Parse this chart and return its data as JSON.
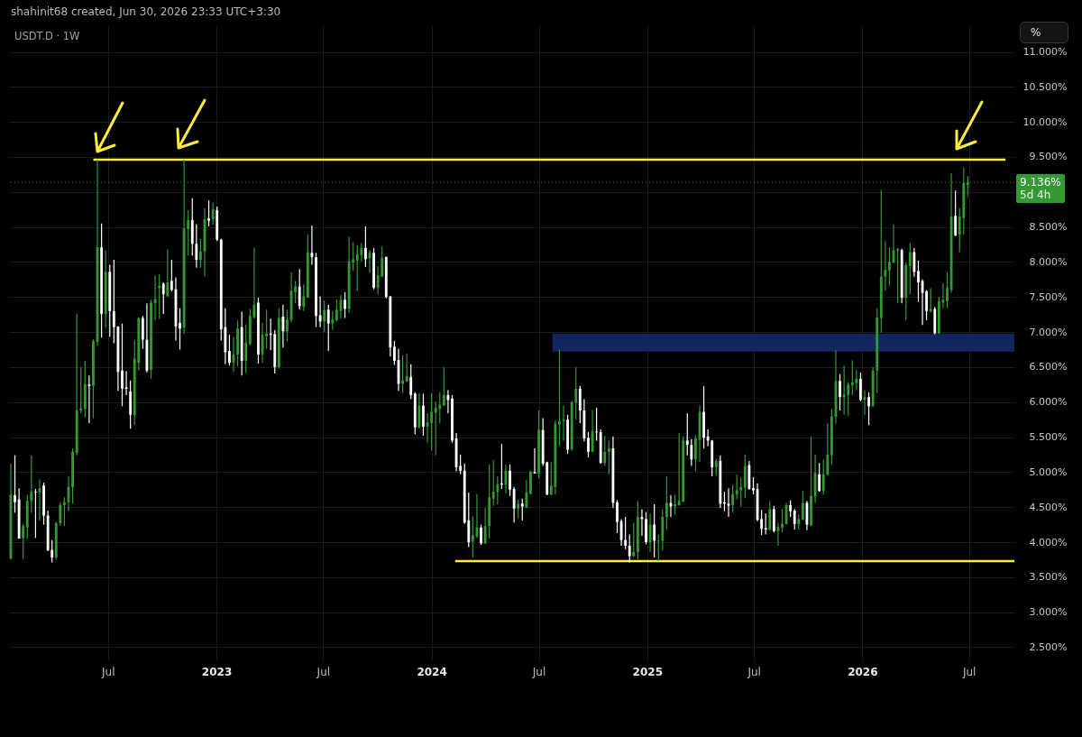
{
  "chart_data": {
    "type": "candlestick",
    "title": "USDT.D · 1W",
    "subtitle": "shahinit68 created, Jun 30, 2026 23:33 UTC+3:30",
    "x": [
      "2022-01-17",
      "2022-01-24",
      "2022-01-31",
      "2022-02-07",
      "2022-02-14",
      "2022-02-21",
      "2022-02-28",
      "2022-03-07",
      "2022-03-14",
      "2022-03-21",
      "2022-03-28",
      "2022-04-04",
      "2022-04-11",
      "2022-04-18",
      "2022-04-25",
      "2022-05-02",
      "2022-05-09",
      "2022-05-16",
      "2022-05-23",
      "2022-05-30",
      "2022-06-06",
      "2022-06-13",
      "2022-06-20",
      "2022-06-27",
      "2022-07-04",
      "2022-07-11",
      "2022-07-18",
      "2022-07-25",
      "2022-08-01",
      "2022-08-08",
      "2022-08-15",
      "2022-08-22",
      "2022-08-29",
      "2022-09-05",
      "2022-09-12",
      "2022-09-19",
      "2022-09-26",
      "2022-10-03",
      "2022-10-10",
      "2022-10-17",
      "2022-10-24",
      "2022-10-31",
      "2022-11-07",
      "2022-11-14",
      "2022-11-21",
      "2022-11-28",
      "2022-12-05",
      "2022-12-12",
      "2022-12-19",
      "2022-12-26",
      "2023-01-02",
      "2023-01-09",
      "2023-01-16",
      "2023-01-23",
      "2023-01-30",
      "2023-02-06",
      "2023-02-13",
      "2023-02-20",
      "2023-02-27",
      "2023-03-06",
      "2023-03-13",
      "2023-03-20",
      "2023-03-27",
      "2023-04-03",
      "2023-04-10",
      "2023-04-17",
      "2023-04-24",
      "2023-05-01",
      "2023-05-08",
      "2023-05-15",
      "2023-05-22",
      "2023-05-29",
      "2023-06-05",
      "2023-06-12",
      "2023-06-19",
      "2023-06-26",
      "2023-07-03",
      "2023-07-10",
      "2023-07-17",
      "2023-07-24",
      "2023-07-31",
      "2023-08-07",
      "2023-08-14",
      "2023-08-21",
      "2023-08-28",
      "2023-09-04",
      "2023-09-11",
      "2023-09-18",
      "2023-09-25",
      "2023-10-02",
      "2023-10-09",
      "2023-10-16",
      "2023-10-23",
      "2023-10-30",
      "2023-11-06",
      "2023-11-13",
      "2023-11-20",
      "2023-11-27",
      "2023-12-04",
      "2023-12-11",
      "2023-12-18",
      "2023-12-25",
      "2024-01-01",
      "2024-01-08",
      "2024-01-15",
      "2024-01-22",
      "2024-01-29",
      "2024-02-05",
      "2024-02-12",
      "2024-02-19",
      "2024-02-26",
      "2024-03-04",
      "2024-03-11",
      "2024-03-18",
      "2024-03-25",
      "2024-04-01",
      "2024-04-08",
      "2024-04-15",
      "2024-04-22",
      "2024-04-29",
      "2024-05-06",
      "2024-05-13",
      "2024-05-20",
      "2024-05-27",
      "2024-06-03",
      "2024-06-10",
      "2024-06-17",
      "2024-06-24",
      "2024-07-01",
      "2024-07-08",
      "2024-07-15",
      "2024-07-22",
      "2024-07-29",
      "2024-08-05",
      "2024-08-12",
      "2024-08-19",
      "2024-08-26",
      "2024-09-02",
      "2024-09-09",
      "2024-09-16",
      "2024-09-23",
      "2024-09-30",
      "2024-10-07",
      "2024-10-14",
      "2024-10-21",
      "2024-10-28",
      "2024-11-04",
      "2024-11-11",
      "2024-11-18",
      "2024-11-25",
      "2024-12-02",
      "2024-12-09",
      "2024-12-16",
      "2024-12-23",
      "2024-12-30",
      "2025-01-06",
      "2025-01-13",
      "2025-01-20",
      "2025-01-27",
      "2025-02-03",
      "2025-02-10",
      "2025-02-17",
      "2025-02-24",
      "2025-03-03",
      "2025-03-10",
      "2025-03-17",
      "2025-03-24",
      "2025-03-31",
      "2025-04-07",
      "2025-04-14",
      "2025-04-21",
      "2025-04-28",
      "2025-05-05",
      "2025-05-12",
      "2025-05-19",
      "2025-05-26",
      "2025-06-02",
      "2025-06-09",
      "2025-06-16",
      "2025-06-23",
      "2025-06-30",
      "2025-07-07",
      "2025-07-14",
      "2025-07-21",
      "2025-07-28",
      "2025-08-04",
      "2025-08-11",
      "2025-08-18",
      "2025-08-25",
      "2025-09-01",
      "2025-09-08",
      "2025-09-15",
      "2025-09-22",
      "2025-09-29",
      "2025-10-06",
      "2025-10-13",
      "2025-10-20",
      "2025-10-27",
      "2025-11-03",
      "2025-11-10",
      "2025-11-17",
      "2025-11-24",
      "2025-12-01",
      "2025-12-08",
      "2025-12-15",
      "2025-12-22",
      "2025-12-29",
      "2026-01-05",
      "2026-01-12",
      "2026-01-19",
      "2026-01-26",
      "2026-02-02",
      "2026-02-09",
      "2026-02-16",
      "2026-02-23",
      "2026-03-02",
      "2026-03-09",
      "2026-03-16",
      "2026-03-23",
      "2026-03-30",
      "2026-04-06",
      "2026-04-13",
      "2026-04-20",
      "2026-04-27",
      "2026-05-04",
      "2026-05-11",
      "2026-05-18",
      "2026-05-25",
      "2026-06-01",
      "2026-06-08",
      "2026-06-15",
      "2026-06-22",
      "2026-06-29"
    ],
    "ohlc": [
      [
        3.76,
        5.12,
        3.76,
        4.68
      ],
      [
        4.67,
        5.24,
        4.42,
        4.57
      ],
      [
        4.61,
        4.77,
        4.05,
        4.05
      ],
      [
        4.06,
        4.26,
        3.76,
        4.23
      ],
      [
        4.21,
        4.68,
        4.05,
        4.59
      ],
      [
        4.59,
        5.24,
        4.42,
        4.72
      ],
      [
        4.72,
        4.76,
        4.06,
        4.71
      ],
      [
        4.71,
        4.9,
        4.31,
        4.77
      ],
      [
        4.81,
        4.85,
        4.25,
        4.38
      ],
      [
        4.38,
        4.45,
        3.88,
        3.88
      ],
      [
        3.89,
        4.03,
        3.71,
        3.78
      ],
      [
        3.78,
        4.29,
        3.75,
        4.27
      ],
      [
        4.27,
        4.57,
        4.23,
        4.53
      ],
      [
        4.53,
        4.64,
        4.23,
        4.57
      ],
      [
        4.57,
        4.94,
        4.44,
        4.79
      ],
      [
        4.78,
        5.34,
        4.55,
        5.29
      ],
      [
        5.27,
        7.26,
        5.24,
        5.88
      ],
      [
        5.88,
        6.5,
        5.84,
        5.91
      ],
      [
        5.9,
        6.59,
        5.78,
        6.26
      ],
      [
        6.25,
        6.38,
        5.7,
        6.23
      ],
      [
        6.23,
        6.9,
        5.77,
        6.87
      ],
      [
        6.86,
        9.46,
        6.8,
        8.21
      ],
      [
        8.21,
        8.55,
        6.92,
        7.26
      ],
      [
        7.26,
        8.17,
        7.06,
        7.86
      ],
      [
        7.86,
        7.96,
        6.93,
        7.3
      ],
      [
        7.3,
        8.03,
        6.84,
        7.07
      ],
      [
        7.08,
        7.08,
        6.16,
        6.43
      ],
      [
        6.45,
        7.12,
        5.94,
        6.19
      ],
      [
        6.21,
        6.44,
        6.1,
        6.19
      ],
      [
        6.15,
        6.31,
        5.62,
        5.82
      ],
      [
        5.81,
        6.89,
        5.67,
        6.62
      ],
      [
        6.56,
        7.21,
        6.45,
        7.2
      ],
      [
        7.2,
        7.23,
        6.76,
        6.89
      ],
      [
        6.89,
        7.41,
        6.42,
        6.45
      ],
      [
        6.46,
        7.46,
        6.33,
        7.42
      ],
      [
        7.41,
        7.81,
        7.17,
        7.47
      ],
      [
        7.63,
        7.83,
        7.19,
        7.66
      ],
      [
        7.69,
        7.71,
        7.26,
        7.54
      ],
      [
        7.51,
        8.18,
        7.51,
        7.71
      ],
      [
        7.73,
        8.03,
        7.58,
        7.6
      ],
      [
        7.61,
        7.78,
        6.88,
        7.08
      ],
      [
        7.13,
        7.34,
        6.75,
        7.05
      ],
      [
        7.06,
        9.46,
        6.97,
        8.48
      ],
      [
        8.47,
        8.74,
        8.09,
        8.6
      ],
      [
        8.6,
        8.91,
        8.09,
        8.26
      ],
      [
        8.26,
        8.54,
        7.92,
        8.03
      ],
      [
        8.03,
        8.33,
        7.92,
        8.15
      ],
      [
        8.15,
        8.77,
        7.79,
        8.61
      ],
      [
        8.62,
        8.88,
        8.51,
        8.59
      ],
      [
        8.61,
        8.85,
        8.53,
        8.75
      ],
      [
        8.74,
        8.79,
        8.3,
        8.32
      ],
      [
        8.32,
        8.33,
        6.88,
        7.04
      ],
      [
        7.07,
        7.34,
        6.54,
        6.71
      ],
      [
        6.73,
        6.96,
        6.52,
        6.56
      ],
      [
        6.56,
        6.93,
        6.43,
        6.68
      ],
      [
        6.68,
        7.17,
        6.51,
        7.05
      ],
      [
        7.07,
        7.29,
        6.38,
        6.59
      ],
      [
        6.59,
        7.11,
        6.41,
        6.85
      ],
      [
        6.83,
        7.33,
        6.81,
        7.23
      ],
      [
        7.21,
        8.2,
        7.19,
        7.39
      ],
      [
        7.42,
        7.49,
        6.55,
        6.68
      ],
      [
        6.68,
        7.13,
        6.56,
        6.96
      ],
      [
        6.94,
        7.32,
        6.76,
        6.98
      ],
      [
        6.98,
        7.19,
        6.74,
        6.96
      ],
      [
        6.97,
        7.03,
        6.41,
        6.5
      ],
      [
        6.5,
        7.34,
        6.48,
        7.2
      ],
      [
        7.22,
        7.39,
        6.78,
        7.01
      ],
      [
        7.01,
        7.32,
        6.87,
        7.18
      ],
      [
        7.17,
        7.85,
        7.14,
        7.59
      ],
      [
        7.57,
        7.73,
        7.41,
        7.65
      ],
      [
        7.65,
        7.9,
        7.32,
        7.37
      ],
      [
        7.36,
        7.68,
        7.3,
        7.51
      ],
      [
        7.49,
        8.39,
        7.49,
        8.14
      ],
      [
        8.13,
        8.52,
        7.96,
        8.07
      ],
      [
        8.07,
        8.13,
        7.07,
        7.23
      ],
      [
        7.24,
        7.51,
        7.07,
        7.15
      ],
      [
        7.15,
        7.45,
        7.0,
        7.31
      ],
      [
        7.32,
        7.39,
        6.73,
        7.12
      ],
      [
        7.12,
        7.3,
        7.03,
        7.18
      ],
      [
        7.17,
        7.46,
        7.15,
        7.32
      ],
      [
        7.3,
        7.53,
        7.19,
        7.46
      ],
      [
        7.46,
        7.57,
        7.2,
        7.33
      ],
      [
        7.33,
        8.36,
        7.27,
        8.01
      ],
      [
        7.99,
        8.28,
        7.87,
        8.04
      ],
      [
        8.02,
        8.24,
        7.58,
        8.11
      ],
      [
        8.1,
        8.27,
        8.01,
        8.2
      ],
      [
        8.2,
        8.51,
        7.93,
        8.04
      ],
      [
        8.05,
        8.17,
        7.84,
        8.13
      ],
      [
        8.13,
        8.2,
        7.61,
        7.63
      ],
      [
        7.63,
        7.94,
        7.54,
        7.81
      ],
      [
        7.79,
        8.22,
        7.79,
        8.06
      ],
      [
        8.07,
        8.08,
        7.48,
        7.5
      ],
      [
        7.51,
        7.51,
        6.65,
        6.78
      ],
      [
        6.79,
        6.87,
        6.53,
        6.59
      ],
      [
        6.6,
        6.76,
        6.16,
        6.26
      ],
      [
        6.26,
        6.67,
        6.13,
        6.31
      ],
      [
        6.29,
        6.69,
        6.29,
        6.37
      ],
      [
        6.36,
        6.54,
        6.04,
        6.1
      ],
      [
        6.12,
        6.14,
        5.54,
        5.64
      ],
      [
        5.64,
        6.13,
        5.62,
        5.95
      ],
      [
        5.95,
        6.12,
        5.52,
        5.65
      ],
      [
        5.65,
        5.84,
        5.42,
        5.71
      ],
      [
        5.7,
        6.13,
        5.31,
        5.86
      ],
      [
        5.85,
        6.01,
        5.24,
        5.92
      ],
      [
        5.9,
        6.14,
        5.7,
        5.96
      ],
      [
        5.95,
        6.5,
        5.95,
        6.1
      ],
      [
        6.1,
        6.17,
        5.84,
        6.03
      ],
      [
        6.05,
        6.1,
        5.42,
        5.45
      ],
      [
        5.48,
        5.56,
        5.01,
        5.07
      ],
      [
        5.09,
        5.25,
        4.97,
        5.02
      ],
      [
        5.02,
        5.12,
        4.26,
        4.28
      ],
      [
        4.31,
        4.71,
        3.93,
        4.0
      ],
      [
        4.01,
        4.37,
        3.78,
        4.1
      ],
      [
        4.08,
        4.69,
        4.06,
        4.21
      ],
      [
        4.21,
        4.25,
        3.96,
        3.98
      ],
      [
        3.98,
        4.49,
        3.98,
        4.23
      ],
      [
        4.23,
        5.11,
        4.05,
        4.64
      ],
      [
        4.62,
        5.17,
        4.52,
        4.72
      ],
      [
        4.72,
        4.94,
        4.54,
        4.83
      ],
      [
        4.84,
        5.4,
        4.76,
        4.82
      ],
      [
        4.82,
        5.11,
        4.7,
        5.02
      ],
      [
        5.02,
        5.11,
        4.66,
        4.75
      ],
      [
        4.76,
        4.79,
        4.28,
        4.48
      ],
      [
        4.48,
        4.61,
        4.34,
        4.55
      ],
      [
        4.55,
        4.62,
        4.31,
        4.51
      ],
      [
        4.49,
        4.89,
        4.49,
        4.71
      ],
      [
        4.69,
        5.02,
        4.68,
        5.01
      ],
      [
        5.0,
        5.34,
        4.98,
        4.98
      ],
      [
        4.98,
        5.88,
        4.91,
        5.6
      ],
      [
        5.6,
        5.77,
        5.09,
        5.12
      ],
      [
        5.14,
        5.15,
        4.67,
        4.68
      ],
      [
        4.68,
        5.14,
        4.67,
        4.81
      ],
      [
        4.79,
        5.74,
        4.68,
        5.69
      ],
      [
        5.68,
        6.75,
        5.37,
        5.73
      ],
      [
        5.73,
        5.95,
        5.45,
        5.75
      ],
      [
        5.75,
        5.82,
        5.26,
        5.32
      ],
      [
        5.32,
        6.02,
        5.31,
        6.0
      ],
      [
        5.99,
        6.5,
        5.75,
        6.19
      ],
      [
        6.19,
        6.23,
        5.7,
        5.88
      ],
      [
        5.88,
        6.04,
        5.44,
        5.48
      ],
      [
        5.49,
        5.57,
        5.21,
        5.29
      ],
      [
        5.29,
        5.89,
        5.28,
        5.58
      ],
      [
        5.58,
        5.92,
        5.45,
        5.57
      ],
      [
        5.57,
        5.61,
        5.12,
        5.13
      ],
      [
        5.13,
        5.52,
        5.09,
        5.29
      ],
      [
        5.29,
        5.45,
        4.97,
        5.34
      ],
      [
        5.34,
        5.51,
        4.49,
        4.56
      ],
      [
        4.57,
        4.6,
        4.13,
        4.29
      ],
      [
        4.3,
        4.33,
        3.95,
        4.03
      ],
      [
        4.03,
        4.36,
        3.9,
        3.95
      ],
      [
        3.95,
        4.11,
        3.71,
        3.8
      ],
      [
        3.8,
        4.28,
        3.79,
        3.86
      ],
      [
        3.86,
        4.59,
        3.76,
        4.36
      ],
      [
        4.36,
        4.47,
        4.09,
        4.33
      ],
      [
        4.33,
        4.43,
        3.97,
        4.0
      ],
      [
        4.0,
        4.41,
        3.86,
        4.25
      ],
      [
        4.25,
        4.54,
        3.78,
        4.02
      ],
      [
        4.01,
        4.11,
        3.73,
        4.02
      ],
      [
        4.02,
        4.47,
        3.88,
        4.36
      ],
      [
        4.36,
        4.94,
        4.18,
        4.56
      ],
      [
        4.56,
        4.67,
        4.36,
        4.51
      ],
      [
        4.51,
        4.68,
        4.39,
        4.54
      ],
      [
        4.53,
        5.56,
        4.52,
        4.59
      ],
      [
        4.58,
        5.51,
        4.57,
        5.45
      ],
      [
        5.45,
        5.84,
        5.24,
        5.39
      ],
      [
        5.39,
        5.47,
        5.09,
        5.18
      ],
      [
        5.18,
        5.53,
        5.01,
        5.48
      ],
      [
        5.46,
        5.95,
        5.15,
        5.86
      ],
      [
        5.86,
        6.23,
        5.34,
        5.49
      ],
      [
        5.51,
        5.61,
        5.37,
        5.45
      ],
      [
        5.45,
        5.46,
        4.94,
        5.07
      ],
      [
        5.07,
        5.19,
        4.95,
        5.16
      ],
      [
        5.16,
        5.24,
        4.49,
        4.55
      ],
      [
        4.57,
        4.72,
        4.44,
        4.55
      ],
      [
        4.55,
        4.77,
        4.36,
        4.52
      ],
      [
        4.53,
        4.82,
        4.43,
        4.69
      ],
      [
        4.68,
        4.97,
        4.61,
        4.74
      ],
      [
        4.74,
        4.92,
        4.51,
        4.79
      ],
      [
        4.78,
        5.25,
        4.63,
        5.09
      ],
      [
        5.1,
        5.16,
        4.75,
        4.76
      ],
      [
        4.77,
        4.93,
        4.68,
        4.74
      ],
      [
        4.76,
        4.84,
        4.3,
        4.32
      ],
      [
        4.33,
        4.46,
        4.1,
        4.19
      ],
      [
        4.2,
        4.41,
        4.11,
        4.18
      ],
      [
        4.18,
        4.59,
        4.16,
        4.47
      ],
      [
        4.47,
        4.52,
        4.14,
        4.16
      ],
      [
        4.16,
        4.28,
        3.95,
        4.22
      ],
      [
        4.21,
        4.48,
        4.14,
        4.26
      ],
      [
        4.26,
        4.56,
        4.25,
        4.53
      ],
      [
        4.53,
        4.6,
        4.36,
        4.44
      ],
      [
        4.45,
        4.47,
        4.18,
        4.26
      ],
      [
        4.26,
        4.4,
        4.18,
        4.33
      ],
      [
        4.32,
        4.73,
        4.32,
        4.56
      ],
      [
        4.56,
        4.59,
        4.17,
        4.25
      ],
      [
        4.24,
        5.51,
        4.23,
        4.66
      ],
      [
        4.65,
        5.25,
        4.56,
        4.99
      ],
      [
        4.97,
        5.13,
        4.72,
        4.73
      ],
      [
        4.73,
        5.18,
        4.68,
        4.97
      ],
      [
        4.96,
        5.7,
        4.96,
        5.25
      ],
      [
        5.24,
        5.9,
        5.11,
        5.8
      ],
      [
        5.79,
        6.74,
        5.69,
        6.3
      ],
      [
        6.3,
        6.4,
        5.88,
        6.07
      ],
      [
        6.07,
        6.52,
        5.82,
        6.11
      ],
      [
        6.1,
        6.29,
        5.8,
        6.25
      ],
      [
        6.24,
        6.6,
        6.1,
        6.28
      ],
      [
        6.27,
        6.46,
        6.17,
        6.33
      ],
      [
        6.33,
        6.42,
        6.01,
        6.03
      ],
      [
        6.03,
        6.17,
        5.82,
        6.07
      ],
      [
        6.07,
        6.14,
        5.67,
        5.94
      ],
      [
        5.94,
        6.5,
        5.94,
        6.45
      ],
      [
        6.45,
        7.34,
        6.13,
        7.21
      ],
      [
        7.2,
        9.03,
        6.99,
        7.79
      ],
      [
        7.79,
        8.3,
        7.59,
        7.89
      ],
      [
        7.88,
        8.21,
        7.66,
        8.0
      ],
      [
        7.99,
        8.54,
        7.99,
        8.17
      ],
      [
        8.16,
        8.2,
        7.41,
        8.18
      ],
      [
        8.17,
        8.19,
        7.41,
        7.49
      ],
      [
        7.49,
        7.99,
        7.17,
        7.96
      ],
      [
        7.94,
        8.27,
        7.54,
        8.14
      ],
      [
        8.14,
        8.2,
        7.79,
        7.86
      ],
      [
        7.87,
        8.02,
        7.43,
        7.71
      ],
      [
        7.73,
        7.75,
        7.1,
        7.56
      ],
      [
        7.58,
        7.6,
        7.17,
        7.3
      ],
      [
        7.3,
        7.63,
        7.28,
        7.33
      ],
      [
        7.33,
        7.36,
        6.97,
        6.98
      ],
      [
        6.98,
        7.5,
        6.98,
        7.44
      ],
      [
        7.42,
        7.7,
        7.34,
        7.46
      ],
      [
        7.44,
        7.85,
        7.34,
        7.63
      ],
      [
        7.6,
        9.27,
        7.56,
        8.65
      ],
      [
        8.66,
        9.02,
        8.37,
        8.38
      ],
      [
        8.39,
        8.77,
        8.14,
        8.65
      ],
      [
        8.63,
        9.35,
        8.39,
        9.13
      ],
      [
        9.1,
        9.23,
        8.94,
        9.136
      ]
    ],
    "colors": [
      "#339933",
      "#ffffff",
      "#ffffff",
      "#339933",
      "#339933",
      "#339933",
      "#ffffff",
      "#339933",
      "#ffffff",
      "#ffffff",
      "#ffffff",
      "#339933",
      "#339933",
      "#339933",
      "#339933",
      "#339933",
      "#339933",
      "#339933",
      "#339933",
      "#ffffff",
      "#339933",
      "#339933",
      "#ffffff",
      "#339933",
      "#ffffff",
      "#ffffff",
      "#ffffff",
      "#ffffff",
      "#ffffff",
      "#ffffff",
      "#339933",
      "#339933",
      "#ffffff",
      "#ffffff",
      "#339933",
      "#339933",
      "#339933",
      "#ffffff",
      "#339933",
      "#ffffff",
      "#ffffff",
      "#ffffff",
      "#339933",
      "#339933",
      "#ffffff",
      "#ffffff",
      "#339933",
      "#339933",
      "#ffffff",
      "#339933",
      "#ffffff",
      "#ffffff",
      "#ffffff",
      "#ffffff",
      "#339933",
      "#339933",
      "#ffffff",
      "#339933",
      "#339933",
      "#339933",
      "#ffffff",
      "#339933",
      "#339933",
      "#ffffff",
      "#ffffff",
      "#339933",
      "#ffffff",
      "#339933",
      "#339933",
      "#339933",
      "#ffffff",
      "#339933",
      "#339933",
      "#ffffff",
      "#ffffff",
      "#ffffff",
      "#339933",
      "#ffffff",
      "#339933",
      "#339933",
      "#339933",
      "#ffffff",
      "#339933",
      "#339933",
      "#339933",
      "#339933",
      "#ffffff",
      "#339933",
      "#ffffff",
      "#339933",
      "#339933",
      "#ffffff",
      "#ffffff",
      "#ffffff",
      "#ffffff",
      "#339933",
      "#339933",
      "#ffffff",
      "#ffffff",
      "#339933",
      "#ffffff",
      "#339933",
      "#339933",
      "#339933",
      "#339933",
      "#339933",
      "#ffffff",
      "#ffffff",
      "#ffffff",
      "#ffffff",
      "#ffffff",
      "#ffffff",
      "#339933",
      "#339933",
      "#ffffff",
      "#339933",
      "#339933",
      "#339933",
      "#339933",
      "#ffffff",
      "#339933",
      "#ffffff",
      "#ffffff",
      "#339933",
      "#ffffff",
      "#339933",
      "#339933",
      "#ffffff",
      "#339933",
      "#ffffff",
      "#ffffff",
      "#339933",
      "#339933",
      "#339933",
      "#339933",
      "#ffffff",
      "#339933",
      "#339933",
      "#ffffff",
      "#ffffff",
      "#ffffff",
      "#339933",
      "#ffffff",
      "#ffffff",
      "#339933",
      "#339933",
      "#ffffff",
      "#ffffff",
      "#ffffff",
      "#ffffff",
      "#ffffff",
      "#339933",
      "#339933",
      "#ffffff",
      "#ffffff",
      "#339933",
      "#ffffff",
      "#339933",
      "#339933",
      "#339933",
      "#ffffff",
      "#339933",
      "#339933",
      "#339933",
      "#ffffff",
      "#ffffff",
      "#339933",
      "#339933",
      "#ffffff",
      "#ffffff",
      "#ffffff",
      "#339933",
      "#ffffff",
      "#ffffff",
      "#ffffff",
      "#339933",
      "#339933",
      "#339933",
      "#339933",
      "#ffffff",
      "#ffffff",
      "#ffffff",
      "#ffffff",
      "#ffffff",
      "#339933",
      "#ffffff",
      "#339933",
      "#339933",
      "#339933",
      "#ffffff",
      "#ffffff",
      "#339933",
      "#339933",
      "#ffffff",
      "#339933",
      "#339933",
      "#ffffff",
      "#339933",
      "#339933",
      "#339933",
      "#339933",
      "#ffffff",
      "#339933",
      "#339933",
      "#339933",
      "#339933",
      "#ffffff",
      "#339933",
      "#ffffff",
      "#339933",
      "#339933",
      "#339933",
      "#339933",
      "#339933",
      "#339933",
      "#339933",
      "#ffffff",
      "#339933",
      "#339933",
      "#ffffff",
      "#ffffff",
      "#ffffff",
      "#ffffff",
      "#339933",
      "#ffffff",
      "#339933",
      "#339933",
      "#339933",
      "#339933",
      "#ffffff",
      "#339933",
      "#339933",
      "#339933"
    ],
    "series": [
      {
        "type": "line",
        "x": [
          "2024-07-24",
          "2026-09-16"
        ],
        "values": [
          null,
          null
        ],
        "lower": [
          6.72,
          6.72
        ],
        "upper": [
          6.98,
          6.98
        ],
        "color": "#13255f"
      },
      {
        "type": "line",
        "x": [
          "2022-06-06",
          "2026-09-01"
        ],
        "values": [
          9.46,
          9.46
        ],
        "color": "#ffeb3b"
      },
      {
        "type": "line",
        "x": [
          "2024-02-10",
          "2026-09-16"
        ],
        "values": [
          3.73,
          3.73
        ],
        "color": "#ffeb3b"
      }
    ],
    "ref_lines": [
      {
        "axis": "y",
        "value": 9.136,
        "label": "9.136%",
        "color": "#339933",
        "line_style": "dotted"
      }
    ],
    "annotations": [
      "5d 4h",
      "%"
    ],
    "xlim": [
      "2022-01-14",
      "2026-09-16"
    ],
    "xticks": [
      {
        "value": "2022-07-01",
        "label": "Jul"
      },
      "2023",
      {
        "value": "2023-07-01",
        "label": "Jul"
      },
      "2024",
      {
        "value": "2024-07-01",
        "label": "Jul"
      },
      "2025",
      {
        "value": "2025-07-01",
        "label": "Jul"
      },
      "2026",
      {
        "value": "2026-07-01",
        "label": "Jul"
      }
    ],
    "ylim": [
      2.3,
      11.38
    ],
    "yticks": [
      {
        "value": 2.5,
        "label": "2.500%"
      },
      {
        "value": 3,
        "label": "3.000%"
      },
      {
        "value": 3.5,
        "label": "3.500%"
      },
      {
        "value": 4,
        "label": "4.000%"
      },
      {
        "value": 4.5,
        "label": "4.500%"
      },
      {
        "value": 5,
        "label": "5.000%"
      },
      {
        "value": 5.5,
        "label": "5.500%"
      },
      {
        "value": 6,
        "label": "6.000%"
      },
      {
        "value": 6.5,
        "label": "6.500%"
      },
      {
        "value": 7,
        "label": "7.000%"
      },
      {
        "value": 7.5,
        "label": "7.500%"
      },
      {
        "value": 8,
        "label": "8.000%"
      },
      {
        "value": 8.5,
        "label": "8.500%"
      },
      {
        "value": 9,
        "label": null
      },
      {
        "value": 9.5,
        "label": "9.500%"
      },
      {
        "value": 10,
        "label": "10.000%"
      },
      {
        "value": 10.5,
        "label": "10.500%"
      },
      {
        "value": 11,
        "label": "11.000%"
      }
    ],
    "grid": true
  }
}
